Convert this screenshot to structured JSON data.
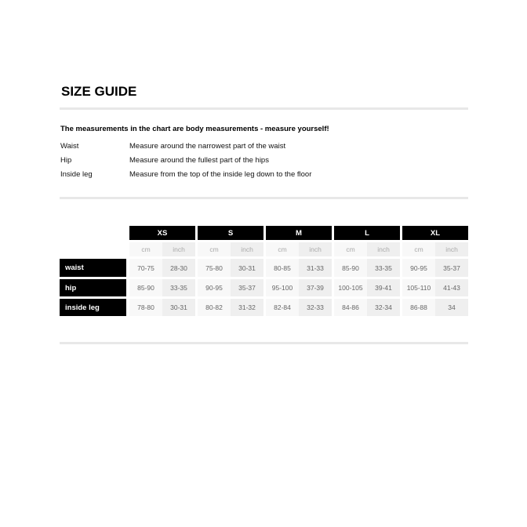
{
  "title": "SIZE GUIDE",
  "intro": "The measurements in the chart are body measurements - measure yourself!",
  "measures": [
    {
      "name": "Waist",
      "desc": "Measure around the narrowest part of the waist"
    },
    {
      "name": "Hip",
      "desc": "Measure around the fullest part of the hips"
    },
    {
      "name": "Inside leg",
      "desc": "Measure from the top of the inside leg down to the floor"
    }
  ],
  "table": {
    "sizes": [
      "XS",
      "S",
      "M",
      "L",
      "XL"
    ],
    "units": [
      "cm",
      "inch"
    ],
    "rows": [
      {
        "label": "waist",
        "values": [
          [
            "70-75",
            "28-30"
          ],
          [
            "75-80",
            "30-31"
          ],
          [
            "80-85",
            "31-33"
          ],
          [
            "85-90",
            "33-35"
          ],
          [
            "90-95",
            "35-37"
          ]
        ]
      },
      {
        "label": "hip",
        "values": [
          [
            "85-90",
            "33-35"
          ],
          [
            "90-95",
            "35-37"
          ],
          [
            "95-100",
            "37-39"
          ],
          [
            "100-105",
            "39-41"
          ],
          [
            "105-110",
            "41-43"
          ]
        ]
      },
      {
        "label": "inside leg",
        "values": [
          [
            "78-80",
            "30-31"
          ],
          [
            "80-82",
            "31-32"
          ],
          [
            "82-84",
            "32-33"
          ],
          [
            "84-86",
            "32-34"
          ],
          [
            "86-88",
            "34"
          ]
        ]
      }
    ]
  }
}
